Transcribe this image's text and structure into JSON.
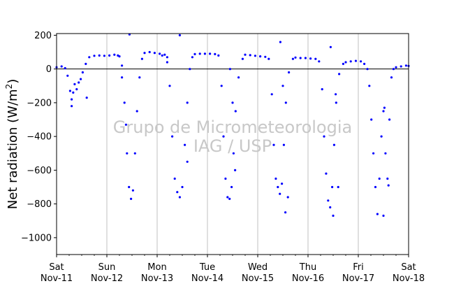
{
  "chart_data": {
    "type": "scatter",
    "title": "",
    "ylabel": "Net radiation (W/m²)",
    "ylabel_main": "Net radiation (W/m",
    "ylabel_sup": "2",
    "ylabel_close": ")",
    "xlabel": "",
    "xlim": [
      0,
      7
    ],
    "ylim": [
      -1100,
      210
    ],
    "yticks": [
      200,
      0,
      -200,
      -400,
      -600,
      -800,
      -1000
    ],
    "ytick_labels": [
      "200",
      "0",
      "−200",
      "−400",
      "−600",
      "−800",
      "−1000"
    ],
    "xticks": [
      {
        "x": 0,
        "day": "Sat",
        "date": "Nov-11"
      },
      {
        "x": 1,
        "day": "Sun",
        "date": "Nov-12"
      },
      {
        "x": 2,
        "day": "Mon",
        "date": "Nov-13"
      },
      {
        "x": 3,
        "day": "Tue",
        "date": "Nov-14"
      },
      {
        "x": 4,
        "day": "Wed",
        "date": "Nov-15"
      },
      {
        "x": 5,
        "day": "Thu",
        "date": "Nov-16"
      },
      {
        "x": 6,
        "day": "Fri",
        "date": "Nov-17"
      },
      {
        "x": 7,
        "day": "Sat",
        "date": "Nov-18"
      }
    ],
    "grid": "vertical",
    "zero_line": true,
    "color": "#0000ff",
    "watermark": [
      "Grupo de Micrometeorologia",
      "IAG / USP"
    ],
    "series": [
      {
        "values": [
          [
            0.0,
            10
          ],
          [
            0.1,
            15
          ],
          [
            0.17,
            5
          ],
          [
            0.22,
            -40
          ],
          [
            0.27,
            -130
          ],
          [
            0.3,
            -180
          ],
          [
            0.33,
            -140
          ],
          [
            0.36,
            -90
          ],
          [
            0.4,
            -120
          ],
          [
            0.44,
            -80
          ],
          [
            0.48,
            -60
          ],
          [
            0.52,
            -20
          ],
          [
            0.58,
            30
          ],
          [
            0.65,
            70
          ],
          [
            0.75,
            78
          ],
          [
            0.85,
            80
          ],
          [
            0.95,
            78
          ],
          [
            1.05,
            80
          ],
          [
            1.15,
            85
          ],
          [
            1.22,
            80
          ],
          [
            1.25,
            75
          ],
          [
            1.3,
            20
          ],
          [
            1.35,
            -200
          ],
          [
            1.4,
            -500
          ],
          [
            1.44,
            -700
          ],
          [
            1.48,
            -770
          ],
          [
            1.52,
            -720
          ],
          [
            1.56,
            -500
          ],
          [
            1.6,
            -250
          ],
          [
            1.65,
            -50
          ],
          [
            1.7,
            60
          ],
          [
            1.75,
            95
          ],
          [
            1.85,
            100
          ],
          [
            1.95,
            95
          ],
          [
            2.05,
            90
          ],
          [
            2.15,
            85
          ],
          [
            2.2,
            70
          ],
          [
            2.25,
            -100
          ],
          [
            2.3,
            -400
          ],
          [
            2.35,
            -650
          ],
          [
            2.4,
            -730
          ],
          [
            2.45,
            -760
          ],
          [
            2.5,
            -700
          ],
          [
            2.55,
            -450
          ],
          [
            2.6,
            -200
          ],
          [
            2.65,
            0
          ],
          [
            2.7,
            70
          ],
          [
            2.75,
            88
          ],
          [
            2.85,
            90
          ],
          [
            2.95,
            90
          ],
          [
            3.05,
            90
          ],
          [
            3.15,
            88
          ],
          [
            3.22,
            80
          ],
          [
            3.28,
            -100
          ],
          [
            3.32,
            -400
          ],
          [
            3.36,
            -650
          ],
          [
            3.4,
            -760
          ],
          [
            3.44,
            -770
          ],
          [
            3.48,
            -700
          ],
          [
            3.52,
            -500
          ],
          [
            3.56,
            -250
          ],
          [
            3.62,
            -50
          ],
          [
            3.7,
            60
          ],
          [
            3.75,
            85
          ],
          [
            3.85,
            82
          ],
          [
            3.95,
            78
          ],
          [
            4.05,
            75
          ],
          [
            4.15,
            72
          ],
          [
            4.22,
            60
          ],
          [
            4.28,
            -150
          ],
          [
            4.32,
            -450
          ],
          [
            4.36,
            -650
          ],
          [
            4.4,
            -700
          ],
          [
            4.44,
            -740
          ],
          [
            4.48,
            -680
          ],
          [
            4.52,
            -450
          ],
          [
            4.56,
            -200
          ],
          [
            4.62,
            -20
          ],
          [
            4.7,
            60
          ],
          [
            4.75,
            68
          ],
          [
            4.85,
            65
          ],
          [
            4.95,
            65
          ],
          [
            5.05,
            62
          ],
          [
            5.15,
            60
          ],
          [
            5.22,
            45
          ],
          [
            5.28,
            -120
          ],
          [
            5.32,
            -400
          ],
          [
            5.36,
            -620
          ],
          [
            5.4,
            -780
          ],
          [
            5.44,
            -820
          ],
          [
            5.48,
            -700
          ],
          [
            5.52,
            -450
          ],
          [
            5.56,
            -200
          ],
          [
            5.62,
            -30
          ],
          [
            5.7,
            30
          ],
          [
            5.75,
            40
          ],
          [
            5.85,
            45
          ],
          [
            5.95,
            48
          ],
          [
            6.05,
            45
          ],
          [
            6.12,
            30
          ],
          [
            6.18,
            0
          ],
          [
            6.22,
            -100
          ],
          [
            6.26,
            -300
          ],
          [
            6.3,
            -500
          ],
          [
            6.34,
            -700
          ],
          [
            6.38,
            -860
          ],
          [
            6.42,
            -650
          ],
          [
            6.46,
            -400
          ],
          [
            6.5,
            -250
          ],
          [
            6.54,
            -500
          ],
          [
            6.58,
            -650
          ],
          [
            6.62,
            -300
          ],
          [
            6.66,
            -50
          ],
          [
            6.7,
            0
          ],
          [
            6.75,
            10
          ],
          [
            6.85,
            15
          ],
          [
            6.95,
            20
          ],
          [
            7.0,
            18
          ],
          [
            1.45,
            205
          ],
          [
            2.45,
            200
          ],
          [
            4.45,
            160
          ],
          [
            5.45,
            130
          ],
          [
            3.45,
            0
          ],
          [
            4.55,
            -850
          ],
          [
            5.5,
            -870
          ],
          [
            6.5,
            -870
          ],
          [
            0.3,
            -220
          ],
          [
            0.6,
            -170
          ],
          [
            2.1,
            80
          ],
          [
            1.38,
            -330
          ],
          [
            2.6,
            -550
          ],
          [
            3.55,
            -600
          ],
          [
            4.6,
            -760
          ],
          [
            5.6,
            -700
          ],
          [
            6.6,
            -690
          ],
          [
            6.52,
            -230
          ],
          [
            5.55,
            -150
          ],
          [
            4.5,
            -100
          ],
          [
            3.5,
            -200
          ],
          [
            2.2,
            40
          ],
          [
            1.3,
            -50
          ]
        ]
      }
    ]
  }
}
